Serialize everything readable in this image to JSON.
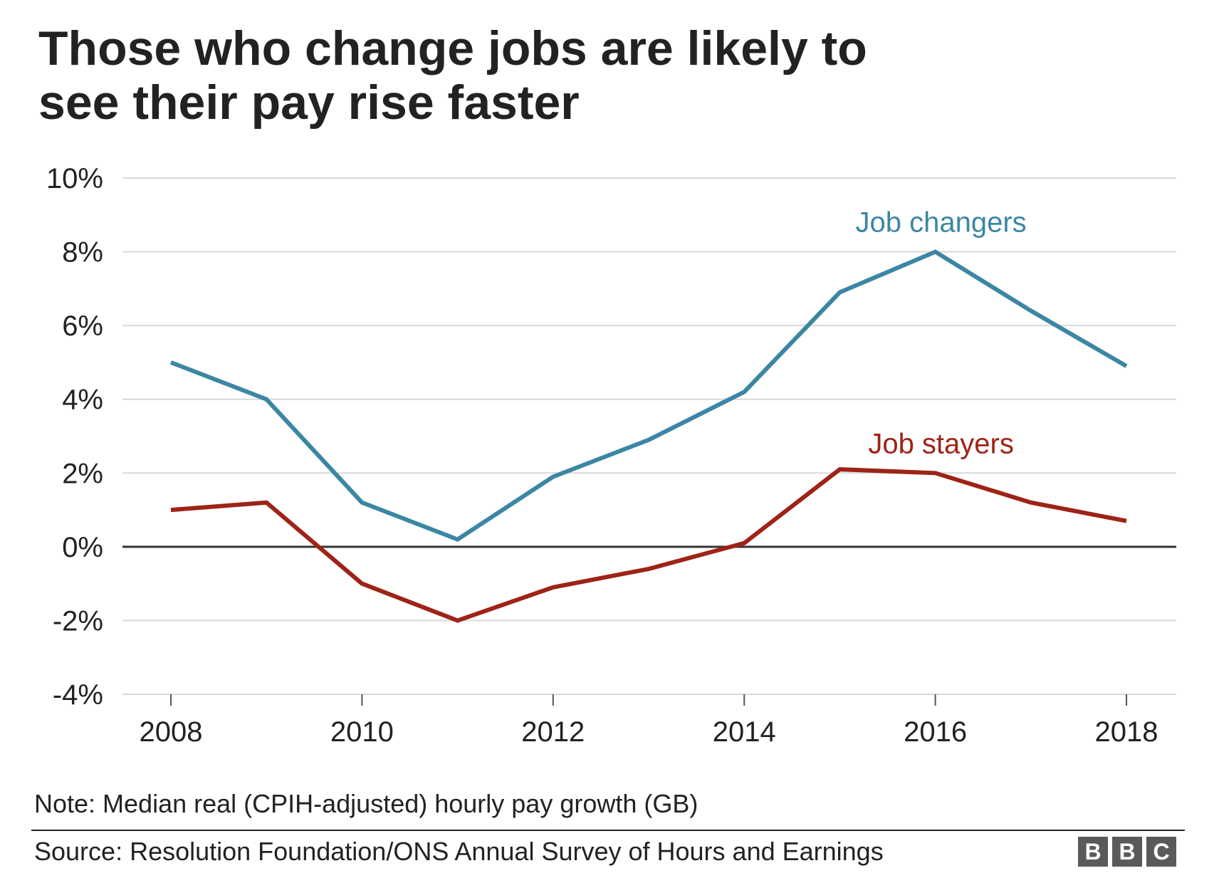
{
  "title": "Those who change jobs are likely to see their pay rise faster",
  "note": "Note: Median real (CPIH-adjusted) hourly pay growth (GB)",
  "source": "Source: Resolution Foundation/ONS Annual Survey of Hours and Earnings",
  "logo": [
    "B",
    "B",
    "C"
  ],
  "colors": {
    "job_changers": "#3c86a3",
    "job_stayers": "#9e2317",
    "gridline": "#d9d9d9",
    "zero_line": "#333333",
    "text": "#222222"
  },
  "chart_data": {
    "type": "line",
    "title": "Those who change jobs are likely to see their pay rise faster",
    "xlabel": "",
    "ylabel": "",
    "x": [
      2008,
      2009,
      2010,
      2011,
      2012,
      2013,
      2014,
      2015,
      2016,
      2017,
      2018
    ],
    "x_ticks": [
      "2008",
      "2010",
      "2012",
      "2014",
      "2016",
      "2018"
    ],
    "x_tick_values": [
      2008,
      2010,
      2012,
      2014,
      2016,
      2018
    ],
    "xlim": [
      2008,
      2018
    ],
    "ylim": [
      -4,
      10
    ],
    "y_ticks": [
      "10%",
      "8%",
      "6%",
      "4%",
      "2%",
      "0%",
      "-2%",
      "-4%"
    ],
    "y_tick_values": [
      10,
      8,
      6,
      4,
      2,
      0,
      -2,
      -4
    ],
    "grid": true,
    "legend": "inline labels",
    "series": [
      {
        "name": "Job changers",
        "color": "#3c86a3",
        "values": [
          5.0,
          4.0,
          1.2,
          0.2,
          1.9,
          2.9,
          4.2,
          6.9,
          8.0,
          6.4,
          4.9
        ]
      },
      {
        "name": "Job stayers",
        "color": "#9e2317",
        "values": [
          1.0,
          1.2,
          -1.0,
          -2.0,
          -1.1,
          -0.6,
          0.1,
          2.1,
          2.0,
          1.2,
          0.7
        ]
      }
    ]
  }
}
